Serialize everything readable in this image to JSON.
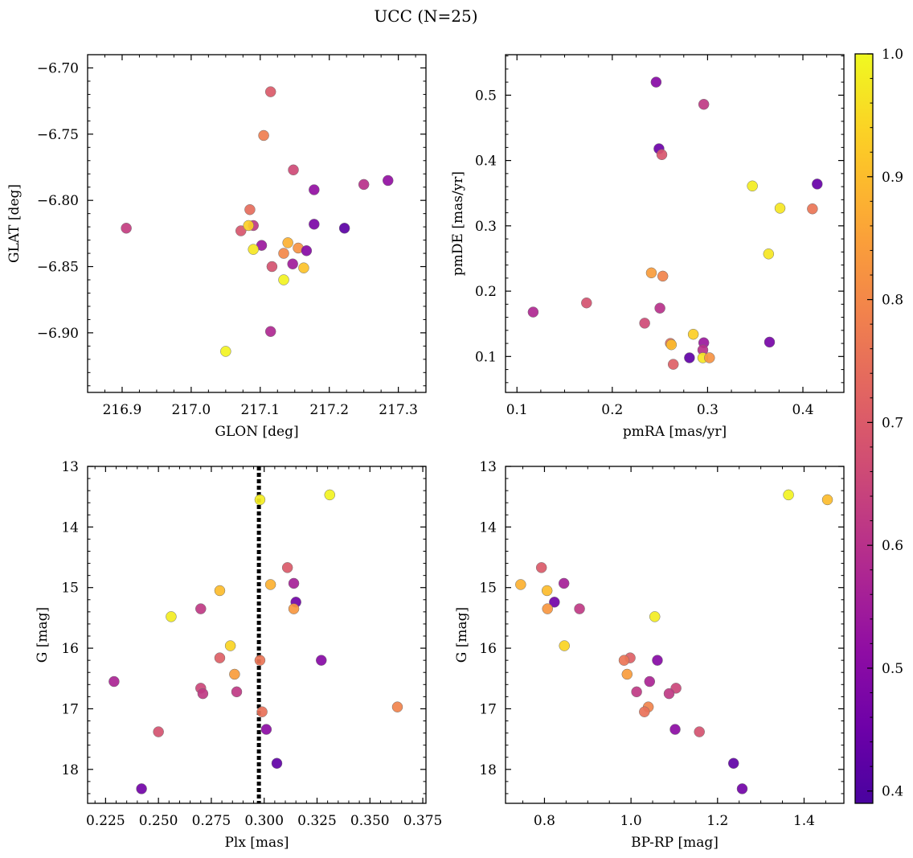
{
  "chart_data": {
    "suptitle": "UCC (N=25)",
    "colorbar": {
      "colormap": "plasma",
      "range": [
        0.39,
        1.0
      ],
      "ticks": [
        0.4,
        0.5,
        0.6,
        0.7,
        0.8,
        0.9,
        1.0
      ],
      "tick_labels": [
        "0.4",
        "0.5",
        "0.6",
        "0.7",
        "0.8",
        "0.9",
        "1.0"
      ]
    },
    "panels": [
      {
        "id": "glon-glat",
        "type": "scatter",
        "xlabel": "GLON [deg]",
        "ylabel": "GLAT [deg]",
        "xlim": [
          216.85,
          217.34
        ],
        "ylim": [
          -6.945,
          -6.69
        ],
        "y_inverted": false,
        "xticks": [
          216.9,
          217.0,
          217.1,
          217.2,
          217.3
        ],
        "xtick_labels": [
          "216.9",
          "217.0",
          "217.1",
          "217.2",
          "217.3"
        ],
        "yticks": [
          -6.7,
          -6.75,
          -6.8,
          -6.85,
          -6.9
        ],
        "ytick_labels": [
          "−6.70",
          "−6.75",
          "−6.80",
          "−6.85",
          "−6.90"
        ],
        "points": [
          [
            217.115,
            -6.718,
            0.7
          ],
          [
            217.105,
            -6.751,
            0.78
          ],
          [
            217.148,
            -6.777,
            0.66
          ],
          [
            217.178,
            -6.792,
            0.52
          ],
          [
            217.25,
            -6.788,
            0.6
          ],
          [
            217.285,
            -6.785,
            0.52
          ],
          [
            216.906,
            -6.821,
            0.63
          ],
          [
            217.222,
            -6.821,
            0.42
          ],
          [
            217.178,
            -6.818,
            0.48
          ],
          [
            217.085,
            -6.807,
            0.74
          ],
          [
            217.072,
            -6.823,
            0.69
          ],
          [
            217.09,
            -6.819,
            0.62
          ],
          [
            217.083,
            -6.819,
            0.93
          ],
          [
            217.102,
            -6.834,
            0.54
          ],
          [
            217.14,
            -6.832,
            0.88
          ],
          [
            217.155,
            -6.836,
            0.82
          ],
          [
            217.167,
            -6.838,
            0.5
          ],
          [
            217.134,
            -6.84,
            0.8
          ],
          [
            217.09,
            -6.837,
            0.97
          ],
          [
            217.117,
            -6.85,
            0.68
          ],
          [
            217.147,
            -6.848,
            0.55
          ],
          [
            217.163,
            -6.851,
            0.91
          ],
          [
            217.134,
            -6.86,
            0.99
          ],
          [
            217.115,
            -6.899,
            0.58
          ],
          [
            217.05,
            -6.914,
            0.99
          ]
        ]
      },
      {
        "id": "pmra-pmde",
        "type": "scatter",
        "xlabel": "pmRA [mas/yr]",
        "ylabel": "pmDE [mas/yr]",
        "xlim": [
          0.088,
          0.443
        ],
        "ylim": [
          0.045,
          0.562
        ],
        "y_inverted": false,
        "xticks": [
          0.1,
          0.2,
          0.3,
          0.4
        ],
        "xtick_labels": [
          "0.1",
          "0.2",
          "0.3",
          "0.4"
        ],
        "yticks": [
          0.1,
          0.2,
          0.3,
          0.4,
          0.5
        ],
        "ytick_labels": [
          "0.1",
          "0.2",
          "0.3",
          "0.4",
          "0.5"
        ],
        "points": [
          [
            0.246,
            0.52,
            0.5
          ],
          [
            0.296,
            0.486,
            0.62
          ],
          [
            0.249,
            0.418,
            0.45
          ],
          [
            0.252,
            0.409,
            0.69
          ],
          [
            0.347,
            0.361,
            0.98
          ],
          [
            0.415,
            0.364,
            0.44
          ],
          [
            0.376,
            0.327,
            0.97
          ],
          [
            0.41,
            0.326,
            0.76
          ],
          [
            0.364,
            0.257,
            0.97
          ],
          [
            0.241,
            0.228,
            0.84
          ],
          [
            0.253,
            0.223,
            0.79
          ],
          [
            0.117,
            0.168,
            0.58
          ],
          [
            0.173,
            0.182,
            0.68
          ],
          [
            0.25,
            0.174,
            0.6
          ],
          [
            0.234,
            0.151,
            0.66
          ],
          [
            0.285,
            0.134,
            0.93
          ],
          [
            0.261,
            0.12,
            0.74
          ],
          [
            0.262,
            0.118,
            0.9
          ],
          [
            0.296,
            0.121,
            0.54
          ],
          [
            0.295,
            0.11,
            0.6
          ],
          [
            0.365,
            0.122,
            0.47
          ],
          [
            0.281,
            0.098,
            0.43
          ],
          [
            0.295,
            0.098,
            0.97
          ],
          [
            0.302,
            0.098,
            0.82
          ],
          [
            0.264,
            0.088,
            0.71
          ]
        ]
      },
      {
        "id": "plx-g",
        "type": "scatter",
        "xlabel": "Plx [mas]",
        "ylabel": "G [mag]",
        "xlim": [
          0.2165,
          0.3765
        ],
        "ylim": [
          13.0,
          18.56
        ],
        "y_inverted": true,
        "xticks": [
          0.225,
          0.25,
          0.275,
          0.3,
          0.325,
          0.35,
          0.375
        ],
        "xtick_labels": [
          "0.225",
          "0.250",
          "0.275",
          "0.300",
          "0.325",
          "0.350",
          "0.375"
        ],
        "yticks": [
          13,
          14,
          15,
          16,
          17,
          18
        ],
        "ytick_labels": [
          "13",
          "14",
          "15",
          "16",
          "17",
          "18"
        ],
        "reference_line": {
          "style": "dotted",
          "x": 0.2975
        },
        "points": [
          [
            0.298,
            13.55,
            0.98
          ],
          [
            0.331,
            13.47,
            0.99
          ],
          [
            0.311,
            14.67,
            0.7
          ],
          [
            0.303,
            14.95,
            0.88
          ],
          [
            0.314,
            14.93,
            0.56
          ],
          [
            0.279,
            15.05,
            0.9
          ],
          [
            0.27,
            15.35,
            0.62
          ],
          [
            0.256,
            15.48,
            0.98
          ],
          [
            0.315,
            15.24,
            0.46
          ],
          [
            0.314,
            15.35,
            0.83
          ],
          [
            0.284,
            15.96,
            0.94
          ],
          [
            0.279,
            16.16,
            0.71
          ],
          [
            0.298,
            16.2,
            0.76
          ],
          [
            0.327,
            16.2,
            0.5
          ],
          [
            0.286,
            16.43,
            0.84
          ],
          [
            0.229,
            16.55,
            0.57
          ],
          [
            0.27,
            16.66,
            0.65
          ],
          [
            0.271,
            16.75,
            0.62
          ],
          [
            0.287,
            16.72,
            0.62
          ],
          [
            0.363,
            16.97,
            0.79
          ],
          [
            0.299,
            17.05,
            0.75
          ],
          [
            0.25,
            17.38,
            0.68
          ],
          [
            0.301,
            17.34,
            0.51
          ],
          [
            0.306,
            17.9,
            0.43
          ],
          [
            0.242,
            18.32,
            0.46
          ]
        ]
      },
      {
        "id": "bprp-g",
        "type": "scatter",
        "xlabel": "BP-RP [mag]",
        "ylabel": "G [mag]",
        "xlim": [
          0.71,
          1.492
        ],
        "ylim": [
          13.0,
          18.56
        ],
        "y_inverted": true,
        "xticks": [
          0.8,
          1.0,
          1.2,
          1.4
        ],
        "xtick_labels": [
          "0.8",
          "1.0",
          "1.2",
          "1.4"
        ],
        "yticks": [
          13,
          14,
          15,
          16,
          17,
          18
        ],
        "ytick_labels": [
          "13",
          "14",
          "15",
          "16",
          "17",
          "18"
        ],
        "points": [
          [
            1.364,
            13.47,
            0.99
          ],
          [
            1.454,
            13.55,
            0.9
          ],
          [
            0.793,
            14.67,
            0.7
          ],
          [
            0.745,
            14.95,
            0.88
          ],
          [
            0.845,
            14.93,
            0.56
          ],
          [
            0.806,
            15.05,
            0.9
          ],
          [
            0.881,
            15.35,
            0.62
          ],
          [
            1.055,
            15.48,
            0.98
          ],
          [
            0.823,
            15.24,
            0.46
          ],
          [
            0.807,
            15.35,
            0.83
          ],
          [
            0.846,
            15.96,
            0.94
          ],
          [
            0.998,
            16.16,
            0.71
          ],
          [
            0.984,
            16.2,
            0.76
          ],
          [
            1.061,
            16.2,
            0.5
          ],
          [
            0.991,
            16.43,
            0.84
          ],
          [
            1.043,
            16.55,
            0.57
          ],
          [
            1.104,
            16.66,
            0.65
          ],
          [
            1.088,
            16.75,
            0.62
          ],
          [
            1.013,
            16.72,
            0.62
          ],
          [
            1.04,
            16.97,
            0.79
          ],
          [
            1.031,
            17.05,
            0.75
          ],
          [
            1.158,
            17.38,
            0.68
          ],
          [
            1.102,
            17.34,
            0.51
          ],
          [
            1.237,
            17.9,
            0.43
          ],
          [
            1.257,
            18.32,
            0.46
          ]
        ]
      }
    ]
  }
}
